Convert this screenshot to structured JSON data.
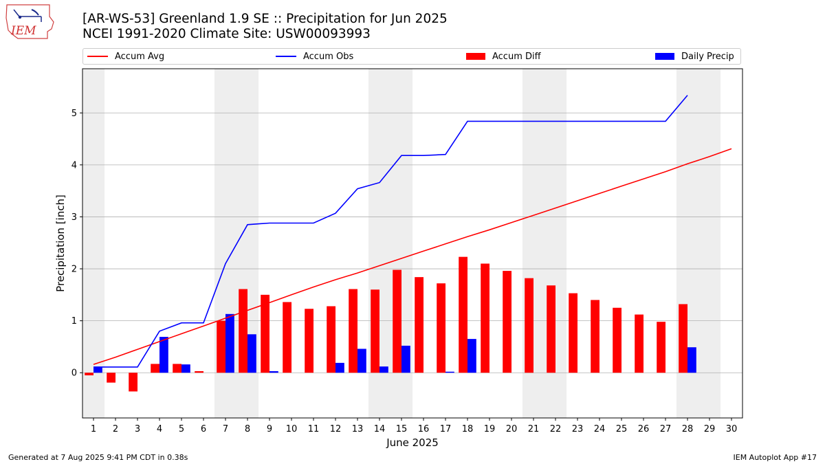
{
  "title": {
    "line1": "[AR-WS-53] Greenland 1.9 SE :: Precipitation for Jun 2025",
    "line2": "NCEI 1991-2020 Climate Site: USW00093993"
  },
  "logo": {
    "text": "IEM"
  },
  "footer": {
    "left": "Generated at 7 Aug 2025 9:41 PM CDT in 0.38s",
    "right": "IEM Autoplot App #17"
  },
  "colors": {
    "avg": "#ff0000",
    "obs": "#0000ff",
    "diff": "#ff0000",
    "daily": "#0000ff",
    "weekend_band": "#eeeeee",
    "grid": "#b0b0b0"
  },
  "chart_data": {
    "type": "bar",
    "xlabel": "June 2025",
    "ylabel": "Precipitation [inch]",
    "xlim": [
      0.5,
      30.5
    ],
    "ylim": [
      -0.87,
      5.85
    ],
    "yticks": [
      0,
      1,
      2,
      3,
      4,
      5
    ],
    "xticks": [
      1,
      2,
      3,
      4,
      5,
      6,
      7,
      8,
      9,
      10,
      11,
      12,
      13,
      14,
      15,
      16,
      17,
      18,
      19,
      20,
      21,
      22,
      23,
      24,
      25,
      26,
      27,
      28,
      29,
      30
    ],
    "grid": "horizontal",
    "legend_position": "top",
    "weekend_days": [
      1,
      7,
      8,
      14,
      15,
      21,
      22,
      28,
      29
    ],
    "series": [
      {
        "name": "Accum Avg",
        "kind": "line",
        "x": [
          1,
          2,
          3,
          4,
          5,
          6,
          7,
          8,
          9,
          10,
          11,
          12,
          13,
          14,
          15,
          16,
          17,
          18,
          19,
          20,
          21,
          22,
          23,
          24,
          25,
          26,
          27,
          28,
          29,
          30
        ],
        "values": [
          0.16,
          0.3,
          0.45,
          0.6,
          0.75,
          0.9,
          1.05,
          1.2,
          1.35,
          1.5,
          1.65,
          1.79,
          1.92,
          2.06,
          2.2,
          2.34,
          2.48,
          2.62,
          2.75,
          2.89,
          3.03,
          3.17,
          3.31,
          3.45,
          3.59,
          3.73,
          3.87,
          4.02,
          4.16,
          4.31
        ]
      },
      {
        "name": "Accum Obs",
        "kind": "line",
        "x": [
          1,
          2,
          3,
          4,
          5,
          6,
          7,
          8,
          9,
          10,
          11,
          12,
          13,
          14,
          15,
          16,
          17,
          18,
          19,
          20,
          21,
          22,
          23,
          24,
          25,
          26,
          27,
          28
        ],
        "values": [
          0.11,
          0.11,
          0.11,
          0.8,
          0.96,
          0.96,
          2.1,
          2.85,
          2.88,
          2.88,
          2.88,
          3.07,
          3.54,
          3.66,
          4.18,
          4.18,
          4.2,
          4.84,
          4.84,
          4.84,
          4.84,
          4.84,
          4.84,
          4.84,
          4.84,
          4.84,
          4.84,
          5.34
        ]
      },
      {
        "name": "Accum Diff",
        "kind": "bar",
        "x": [
          1,
          2,
          3,
          4,
          5,
          6,
          7,
          8,
          9,
          10,
          11,
          12,
          13,
          14,
          15,
          16,
          17,
          18,
          19,
          20,
          21,
          22,
          23,
          24,
          25,
          26,
          27,
          28
        ],
        "values": [
          -0.05,
          -0.19,
          -0.36,
          0.17,
          0.17,
          0.03,
          1.0,
          1.61,
          1.5,
          1.36,
          1.23,
          1.28,
          1.61,
          1.6,
          1.98,
          1.84,
          1.72,
          2.23,
          2.1,
          1.96,
          1.82,
          1.68,
          1.53,
          1.4,
          1.25,
          1.12,
          0.98,
          1.32
        ]
      },
      {
        "name": "Daily Precip",
        "kind": "bar",
        "x": [
          1,
          2,
          3,
          4,
          5,
          6,
          7,
          8,
          9,
          10,
          11,
          12,
          13,
          14,
          15,
          16,
          17,
          18,
          19,
          20,
          21,
          22,
          23,
          24,
          25,
          26,
          27,
          28
        ],
        "values": [
          0.11,
          0,
          0,
          0.69,
          0.16,
          0,
          1.13,
          0.74,
          0.03,
          0,
          0,
          0.19,
          0.46,
          0.12,
          0.52,
          0,
          0.02,
          0.65,
          0,
          0,
          0,
          0,
          0,
          0,
          0,
          0,
          0,
          0.49
        ]
      }
    ]
  }
}
